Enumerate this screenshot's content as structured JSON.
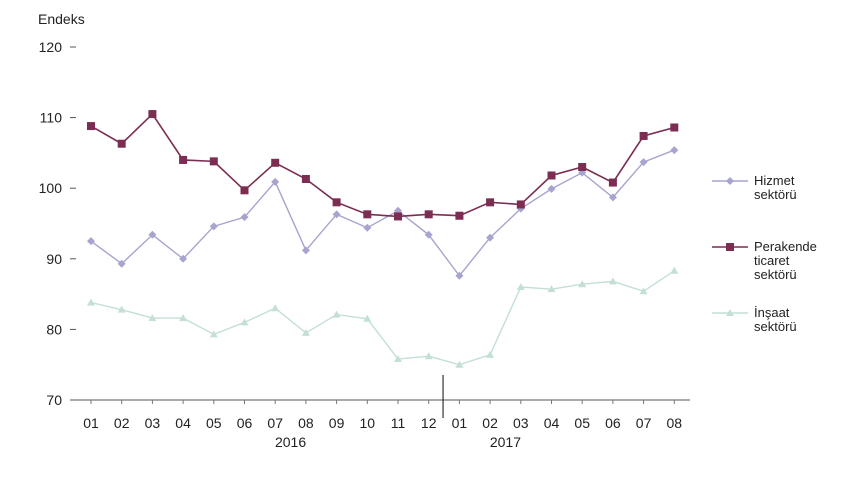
{
  "chart_data": {
    "type": "line",
    "ylabel": "Endeks",
    "ylim": [
      70,
      120
    ],
    "yticks": [
      70,
      80,
      90,
      100,
      110,
      120
    ],
    "categories": [
      "01",
      "02",
      "03",
      "04",
      "05",
      "06",
      "07",
      "08",
      "09",
      "10",
      "11",
      "12",
      "01",
      "02",
      "03",
      "04",
      "05",
      "06",
      "07",
      "08"
    ],
    "years": [
      {
        "label": "2016",
        "at_index": 6.5
      },
      {
        "label": "2017",
        "at_index": 13.5
      }
    ],
    "year_divider_after_index": 11,
    "series": [
      {
        "name": "Hizmet sektörü",
        "name_lines": [
          "Hizmet",
          "sektörü"
        ],
        "color": "#a7a4cf",
        "marker": "diamond",
        "values": [
          92.5,
          89.3,
          93.4,
          90.0,
          94.6,
          95.9,
          100.9,
          91.2,
          96.3,
          94.4,
          96.8,
          93.4,
          87.6,
          93.0,
          97.1,
          99.9,
          102.2,
          98.7,
          103.7,
          105.4
        ]
      },
      {
        "name": "Perakende ticaret sektörü",
        "name_lines": [
          "Perakende",
          "ticaret",
          "sektörü"
        ],
        "color": "#7b2d52",
        "marker": "square",
        "values": [
          108.8,
          106.3,
          110.5,
          104.0,
          103.8,
          99.7,
          103.6,
          101.3,
          98.0,
          96.3,
          96.0,
          96.3,
          96.1,
          98.0,
          97.7,
          101.8,
          103.0,
          100.8,
          107.4,
          108.6
        ]
      },
      {
        "name": "İnşaat sektörü",
        "name_lines": [
          "İnşaat",
          "sektörü"
        ],
        "color": "#c3dfd8",
        "marker": "triangle",
        "values": [
          83.8,
          82.8,
          81.6,
          81.6,
          79.3,
          81.0,
          83.0,
          79.5,
          82.1,
          81.5,
          75.8,
          76.2,
          75.0,
          76.4,
          86.0,
          85.7,
          86.4,
          86.8,
          85.4,
          88.3
        ]
      }
    ]
  }
}
